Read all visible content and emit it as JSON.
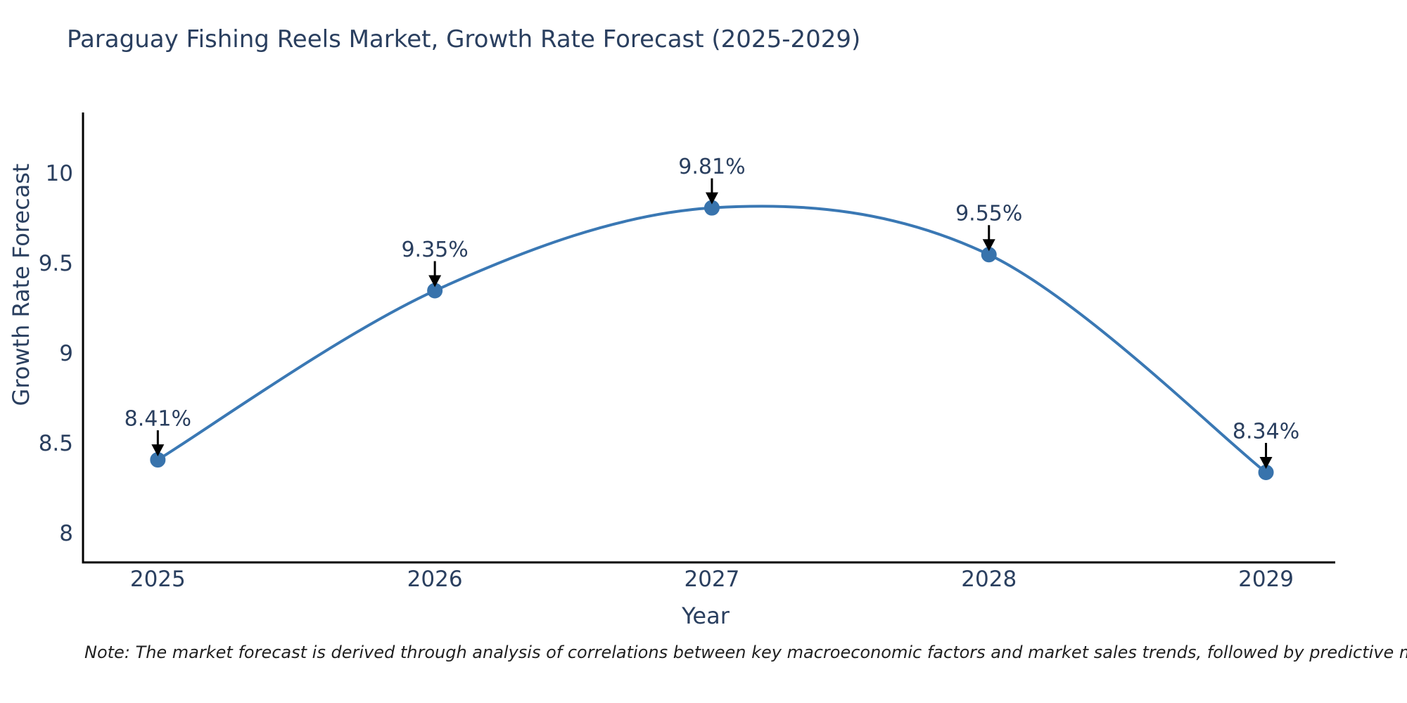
{
  "chart_data": {
    "type": "line",
    "title": "Paraguay Fishing Reels Market, Growth Rate Forecast (2025-2029)",
    "xlabel": "Year",
    "ylabel": "Growth Rate Forecast",
    "x": [
      2025,
      2026,
      2027,
      2028,
      2029
    ],
    "values": [
      8.41,
      9.35,
      9.81,
      9.55,
      8.34
    ],
    "point_labels": [
      "8.41%",
      "9.35%",
      "9.81%",
      "9.55%",
      "8.34%"
    ],
    "x_tick_labels": [
      "2025",
      "2026",
      "2027",
      "2028",
      "2029"
    ],
    "y_ticks": [
      8,
      8.5,
      9,
      9.5,
      10
    ],
    "y_tick_labels": [
      "8",
      "8.5",
      "9",
      "9.5",
      "10"
    ],
    "xlim": [
      2024.73,
      2029.25
    ],
    "ylim": [
      7.84,
      10.34
    ],
    "grid": false,
    "legend_position": "none",
    "line_shape": "spline",
    "line_color": "#3a78b4",
    "marker_color": "#3873ac",
    "axis_line_color": "#000000",
    "annotation_arrow_color": "#000000",
    "note": "Note: The market forecast is derived through analysis of correlations between key macroeconomic factors and market sales trends, followed by predictive modeling to project future sales."
  }
}
